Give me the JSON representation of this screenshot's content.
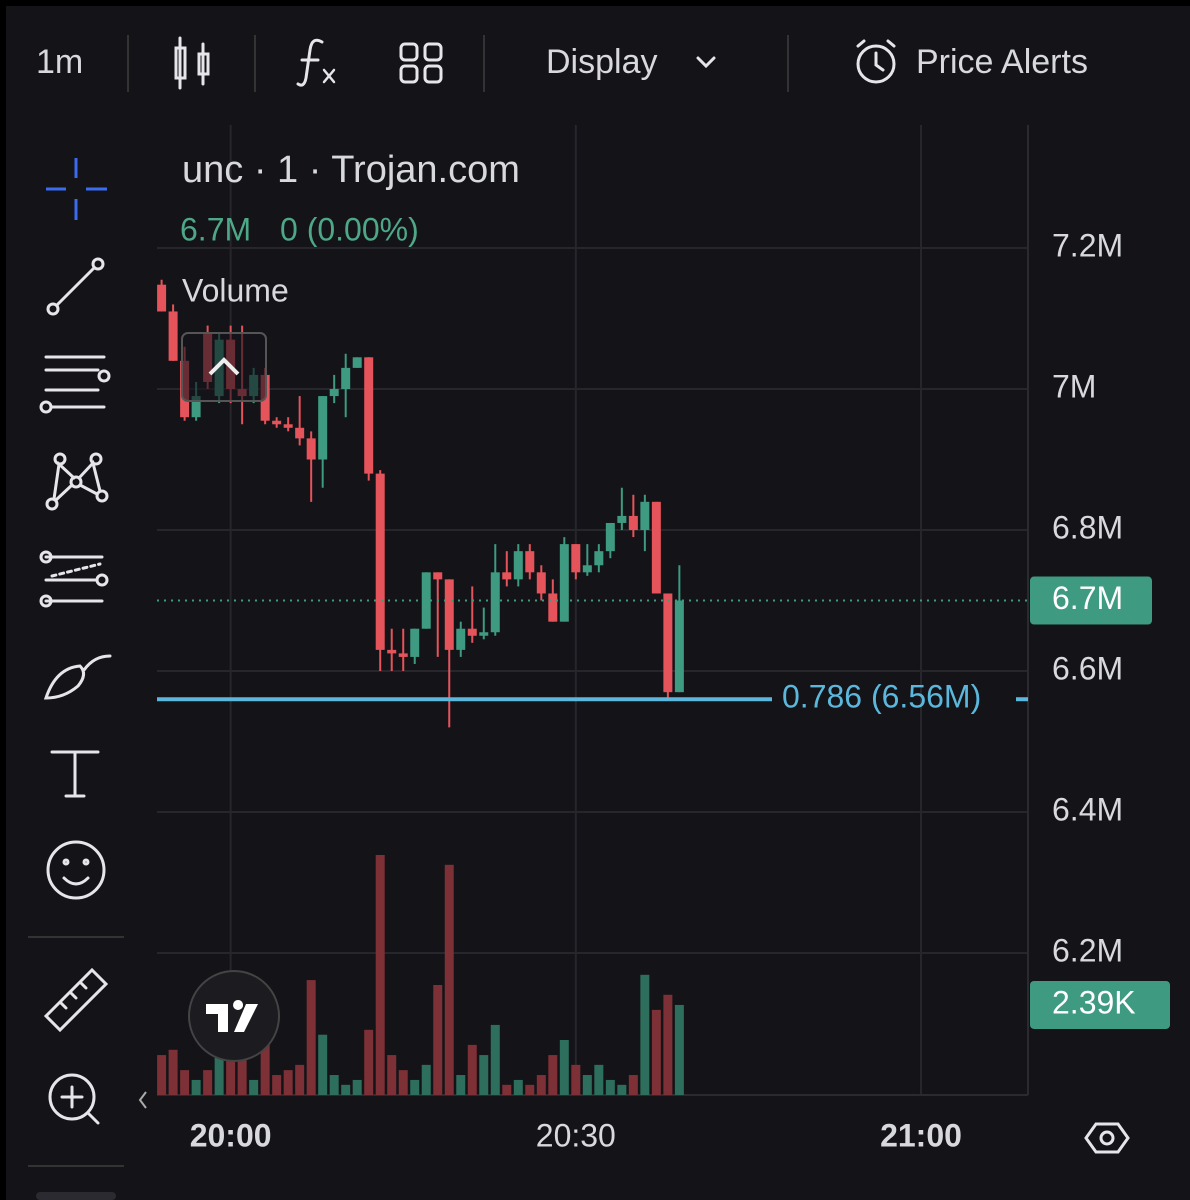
{
  "toolbar": {
    "timeframe": "1m",
    "display": "Display",
    "alerts": "Price Alerts"
  },
  "chart_data": {
    "type": "candlestick",
    "title": "unc · 1 · Trojan.com",
    "last_price": {
      "value": 6700000,
      "label": "6.7M"
    },
    "change": "0 (0.00%)",
    "volume_title": "Volume",
    "up_color": "#3e9a80",
    "down_color": "#e5545a",
    "volume_up_color": "#2e6e5d",
    "volume_down_color": "#7d3035",
    "x": [
      -6,
      -5,
      -4,
      -3,
      -2,
      -1,
      0,
      1,
      2,
      3,
      4,
      5,
      6,
      7,
      8,
      9,
      10,
      11,
      12,
      13,
      14,
      15,
      16,
      17,
      18,
      19,
      20,
      21,
      22,
      23,
      24,
      25,
      26,
      27,
      28,
      29,
      30,
      31,
      32,
      33,
      34,
      35,
      36,
      37,
      38,
      39
    ],
    "open": [
      7148000,
      7110000,
      7040000,
      6960000,
      7080000,
      6990000,
      7070000,
      7000000,
      6990000,
      7020000,
      6955000,
      6950000,
      6945000,
      6930000,
      6900000,
      6990000,
      7000000,
      7030000,
      7045000,
      6880000,
      6630000,
      6625000,
      6620000,
      6660000,
      6740000,
      6730000,
      6630000,
      6660000,
      6650000,
      6655000,
      6740000,
      6730000,
      6770000,
      6740000,
      6710000,
      6670000,
      6780000,
      6740000,
      6750000,
      6770000,
      6810000,
      6820000,
      6800000,
      6840000,
      6710000,
      6570000
    ],
    "high": [
      7155000,
      7120000,
      7060000,
      7010000,
      7090000,
      7080000,
      7090000,
      7090000,
      7030000,
      7030000,
      6960000,
      6960000,
      6990000,
      6940000,
      6990000,
      7020000,
      7050000,
      7045000,
      7045000,
      6885000,
      6660000,
      6660000,
      6660000,
      6740000,
      6740000,
      6730000,
      6670000,
      6720000,
      6690000,
      6780000,
      6770000,
      6780000,
      6780000,
      6750000,
      6730000,
      6790000,
      6780000,
      6780000,
      6780000,
      6810000,
      6860000,
      6850000,
      6850000,
      6840000,
      6710000,
      6750000
    ],
    "low": [
      7110000,
      7040000,
      6955000,
      6955000,
      7000000,
      6980000,
      6980000,
      6950000,
      6980000,
      6950000,
      6945000,
      6940000,
      6920000,
      6840000,
      6860000,
      6980000,
      6960000,
      7030000,
      6870000,
      6600000,
      6600000,
      6600000,
      6610000,
      6660000,
      6620000,
      6520000,
      6620000,
      6640000,
      6645000,
      6650000,
      6720000,
      6720000,
      6730000,
      6700000,
      6670000,
      6670000,
      6730000,
      6735000,
      6740000,
      6760000,
      6800000,
      6790000,
      6770000,
      6710000,
      6560000,
      6570000
    ],
    "close": [
      7110000,
      7040000,
      6960000,
      6990000,
      7010000,
      7070000,
      7000000,
      6990000,
      7020000,
      6955000,
      6950000,
      6945000,
      6930000,
      6900000,
      6990000,
      7000000,
      7030000,
      7045000,
      6880000,
      6630000,
      6625000,
      6620000,
      6660000,
      6740000,
      6730000,
      6630000,
      6660000,
      6650000,
      6655000,
      6740000,
      6730000,
      6770000,
      6740000,
      6710000,
      6670000,
      6780000,
      6740000,
      6750000,
      6770000,
      6810000,
      6820000,
      6800000,
      6840000,
      6710000,
      6570000,
      6700000
    ],
    "volume": [
      1060,
      1200,
      660,
      400,
      660,
      1460,
      1060,
      930,
      400,
      2000,
      530,
      660,
      800,
      3050,
      1600,
      530,
      270,
      400,
      1730,
      6370,
      1060,
      660,
      400,
      800,
      2920,
      6110,
      530,
      1330,
      1060,
      1860,
      270,
      400,
      270,
      530,
      1060,
      1460,
      800,
      530,
      800,
      400,
      270,
      530,
      3190,
      2260,
      2660,
      2390
    ],
    "volume_label": {
      "value": 2390,
      "label": "2.39K"
    },
    "fib_level": {
      "value": 6560000,
      "label": "0.786 (6.56M)",
      "color": "#5bb8dc"
    },
    "ylim": [
      5998600,
      7374500
    ],
    "yticks": [
      {
        "value": 6200000,
        "label": "6.2M"
      },
      {
        "value": 6400000,
        "label": "6.4M"
      },
      {
        "value": 6600000,
        "label": "6.6M"
      },
      {
        "value": 6800000,
        "label": "6.8M"
      },
      {
        "value": 7000000,
        "label": "7M"
      },
      {
        "value": 7200000,
        "label": "7.2M"
      }
    ],
    "xlim": [
      -6.4,
      69.3
    ],
    "xticks": [
      {
        "value": 0,
        "label": "20:00"
      },
      {
        "value": 30,
        "label": "20:30"
      },
      {
        "value": 60,
        "label": "21:00"
      }
    ],
    "grid": true
  }
}
